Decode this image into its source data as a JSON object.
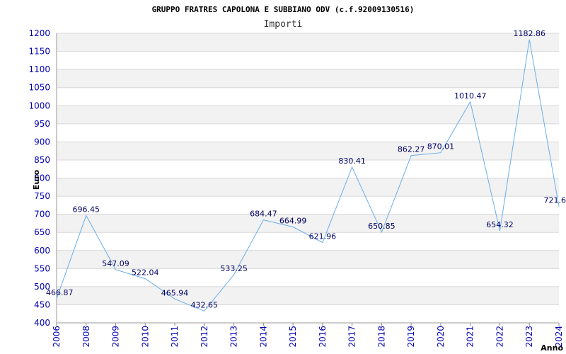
{
  "chart_data": {
    "type": "line",
    "title": "GRUPPO FRATRES CAPOLONA E SUBBIANO ODV (c.f.92009130516)",
    "subtitle": "Importi",
    "xlabel": "Anno",
    "ylabel": "Euro",
    "ylim": [
      400,
      1200
    ],
    "ytick_step": 50,
    "grid": true,
    "line_color": "#6aaee8",
    "band_color": "#f2f2f2",
    "tick_color": "#0000b4",
    "x": [
      "2006",
      "2008",
      "2009",
      "2010",
      "2011",
      "2012",
      "2013",
      "2014",
      "2015",
      "2016",
      "2017",
      "2018",
      "2019",
      "2020",
      "2021",
      "2022",
      "2023",
      "2024"
    ],
    "series": [
      {
        "values": [
          466.87,
          696.45,
          547.09,
          522.04,
          465.94,
          432.65,
          533.25,
          684.47,
          664.99,
          621.96,
          830.41,
          650.85,
          862.27,
          870.01,
          1010.47,
          654.32,
          1182.86,
          721.6
        ]
      }
    ]
  }
}
